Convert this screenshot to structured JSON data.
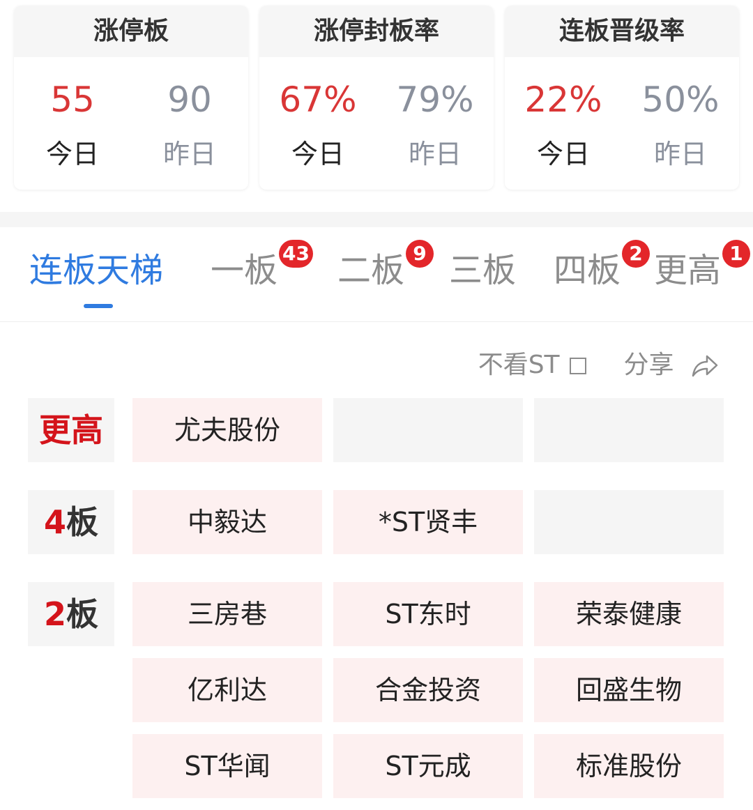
{
  "cards": [
    {
      "title": "涨停板",
      "today": "55",
      "yesterday": "90"
    },
    {
      "title": "涨停封板率",
      "today": "67%",
      "yesterday": "79%"
    },
    {
      "title": "连板晋级率",
      "today": "22%",
      "yesterday": "50%"
    }
  ],
  "labels": {
    "today": "今日",
    "yesterday": "昨日"
  },
  "tabs": [
    {
      "label": "连板天梯",
      "badge": null,
      "active": true
    },
    {
      "label": "一板",
      "badge": "43"
    },
    {
      "label": "二板",
      "badge": "9"
    },
    {
      "label": "三板",
      "badge": null
    },
    {
      "label": "四板",
      "badge": "2"
    },
    {
      "label": "更高",
      "badge": "1"
    }
  ],
  "tools": {
    "hide_st": "不看ST",
    "share": "分享"
  },
  "ladder": [
    {
      "label": "更高",
      "stocks": [
        "尤夫股份"
      ]
    },
    {
      "label_num": "4",
      "label_suffix": "板",
      "stocks": [
        "中毅达",
        "*ST贤丰"
      ]
    },
    {
      "label_num": "2",
      "label_suffix": "板",
      "stocks": [
        "三房巷",
        "ST东时",
        "荣泰健康",
        "亿利达",
        "合金投资",
        "回盛生物",
        "ST华闻",
        "ST元成",
        "标准股份"
      ]
    }
  ],
  "colors": {
    "accent": "#2f7be0",
    "red": "#d93636",
    "badge": "#e3262a"
  }
}
